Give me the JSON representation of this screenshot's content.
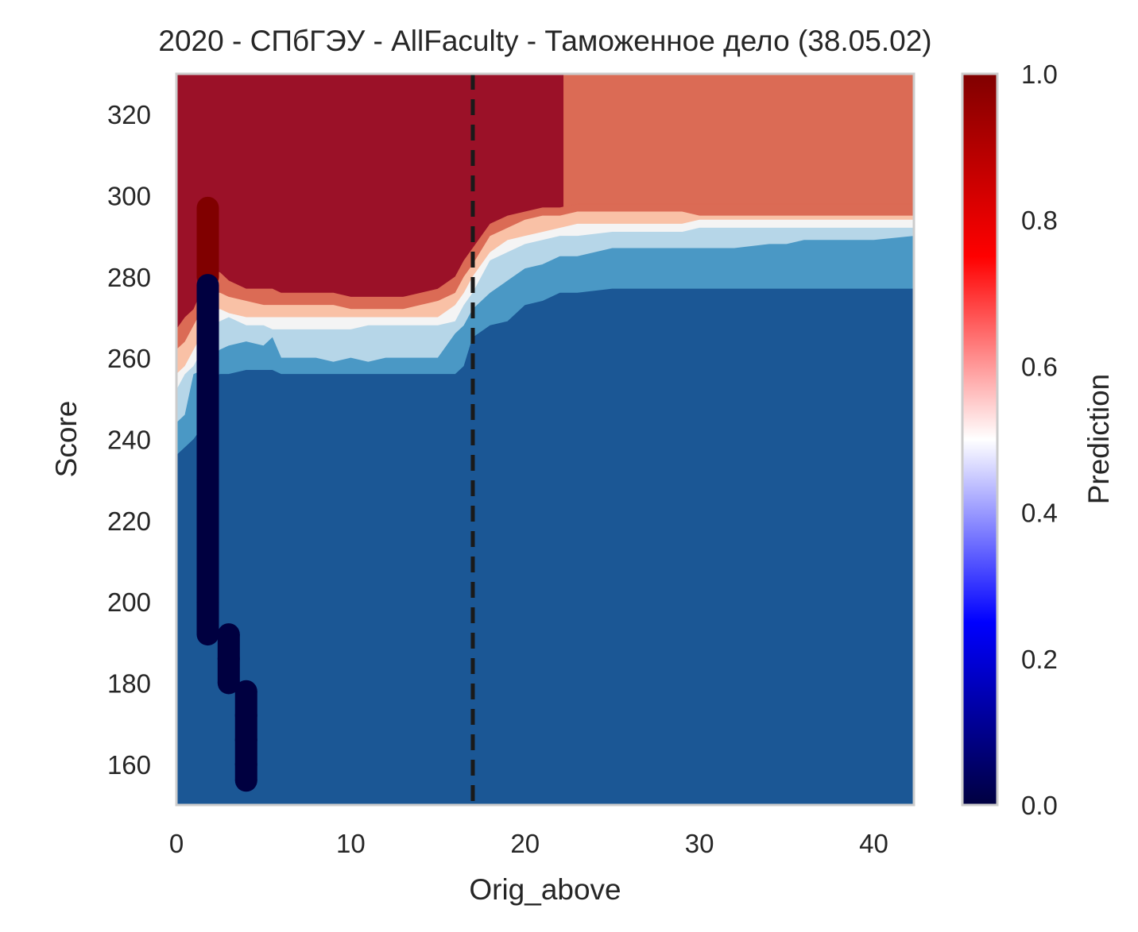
{
  "chart_data": {
    "type": "contour",
    "title": "2020 - СПбГЭУ - AllFaculty - Таможенное дело (38.05.02)",
    "xlabel": "Orig_above",
    "ylabel": "Score",
    "xlim": [
      0,
      42.3
    ],
    "ylim": [
      150,
      330
    ],
    "xticks": [
      "0",
      "10",
      "20",
      "30",
      "40"
    ],
    "yticks": [
      "160",
      "180",
      "200",
      "220",
      "240",
      "260",
      "280",
      "300",
      "320"
    ],
    "grid": false,
    "vline": {
      "x": 17,
      "style": "dashed",
      "color": "#1a1a1a"
    },
    "contour_levels": [
      {
        "label": "<0.2",
        "color": "#1b5795"
      },
      {
        "label": "0.2-0.4",
        "color": "#4a98c5"
      },
      {
        "label": "0.4-0.5",
        "color": "#b6d6e8"
      },
      {
        "label": "0.5-0.6",
        "color": "#f4f4f4"
      },
      {
        "label": "0.6-0.8",
        "color": "#f9c1a6"
      },
      {
        "label": "0.8-0.9",
        "color": "#db6b55"
      },
      {
        "label": ">0.9",
        "color": "#9b1128"
      }
    ],
    "contour_boundaries": {
      "x": [
        0,
        0.5,
        1.0,
        1.5,
        2.0,
        2.5,
        3.0,
        4.0,
        5.0,
        5.5,
        6.0,
        7.0,
        8.0,
        9.0,
        10.0,
        11.0,
        12.0,
        13.0,
        14.0,
        15.0,
        16.0,
        16.5,
        17.0,
        18.0,
        19.0,
        20.0,
        21.0,
        22.0,
        23.0,
        25.0,
        26.0,
        27.0,
        28.0,
        29.0,
        30.0,
        32.0,
        34.0,
        35.0,
        36.0,
        38.0,
        40.0,
        42.3
      ],
      "b1": [
        236,
        238,
        240,
        243,
        255,
        256,
        256,
        257,
        257,
        257,
        256,
        256,
        256,
        256,
        256,
        256,
        256,
        256,
        256,
        256,
        256,
        258,
        265,
        268,
        269,
        273,
        274,
        276,
        276,
        277,
        277,
        277,
        277,
        277,
        277,
        277,
        277,
        277,
        277,
        277,
        277,
        277
      ],
      "b2": [
        244,
        246,
        256,
        257,
        260,
        262,
        263,
        264,
        263,
        265,
        260,
        260,
        260,
        259,
        260,
        259,
        260,
        260,
        260,
        260,
        266,
        268,
        272,
        276,
        279,
        282,
        283,
        285,
        285,
        287,
        287,
        287,
        287,
        287,
        287,
        287,
        288,
        288,
        289,
        289,
        289,
        290
      ],
      "b3": [
        252,
        256,
        258,
        262,
        268,
        269,
        270,
        268,
        268,
        267,
        267,
        267,
        267,
        267,
        267,
        268,
        268,
        268,
        268,
        268,
        269,
        273,
        276,
        284,
        286,
        288,
        289,
        290,
        290,
        291,
        291,
        291,
        291,
        291,
        292,
        292,
        292,
        292,
        292,
        292,
        292,
        292
      ],
      "b4": [
        256,
        258,
        262,
        266,
        271,
        272,
        271,
        270,
        270,
        270,
        270,
        270,
        270,
        270,
        270,
        270,
        270,
        270,
        270,
        270,
        273,
        276,
        280,
        286,
        289,
        290,
        291,
        292,
        293,
        293,
        293,
        293,
        293,
        293,
        294,
        294,
        294,
        294,
        294,
        294,
        294,
        294
      ],
      "b5": [
        262,
        264,
        268,
        272,
        276,
        276,
        275,
        274,
        273,
        273,
        273,
        273,
        273,
        273,
        272,
        272,
        272,
        272,
        273,
        274,
        276,
        280,
        283,
        290,
        292,
        294,
        295,
        295,
        296,
        296,
        296,
        296,
        296,
        296,
        295,
        295,
        295,
        295,
        295,
        295,
        295,
        295
      ],
      "b6": [
        267,
        270,
        272,
        277,
        282,
        281,
        279,
        277,
        277,
        277,
        276,
        276,
        276,
        276,
        275,
        275,
        275,
        275,
        276,
        277,
        280,
        284,
        287,
        293,
        295,
        296,
        297,
        297,
        298,
        298,
        298,
        298,
        298,
        298,
        298,
        298,
        298,
        298,
        298,
        298,
        298,
        298
      ],
      "b7_x_end": 22.2
    },
    "scatter_points": [
      {
        "x": 1.8,
        "y": 297,
        "pred": 1
      },
      {
        "x": 1.8,
        "y": 290,
        "pred": 1
      },
      {
        "x": 1.8,
        "y": 288,
        "pred": 1
      },
      {
        "x": 1.8,
        "y": 285,
        "pred": 1
      },
      {
        "x": 1.8,
        "y": 282,
        "pred": 1
      },
      {
        "x": 1.8,
        "y": 280,
        "pred": 1
      },
      {
        "x": 1.8,
        "y": 278,
        "pred": 0
      },
      {
        "x": 1.8,
        "y": 270,
        "pred": 0
      },
      {
        "x": 1.8,
        "y": 260,
        "pred": 0
      },
      {
        "x": 1.8,
        "y": 250,
        "pred": 0
      },
      {
        "x": 1.8,
        "y": 240,
        "pred": 0
      },
      {
        "x": 1.8,
        "y": 230,
        "pred": 0
      },
      {
        "x": 1.8,
        "y": 220,
        "pred": 0
      },
      {
        "x": 1.8,
        "y": 210,
        "pred": 0
      },
      {
        "x": 1.8,
        "y": 200,
        "pred": 0
      },
      {
        "x": 1.8,
        "y": 192,
        "pred": 0
      },
      {
        "x": 3.0,
        "y": 192,
        "pred": 0
      },
      {
        "x": 3.0,
        "y": 186,
        "pred": 0
      },
      {
        "x": 3.0,
        "y": 180,
        "pred": 0
      },
      {
        "x": 4.0,
        "y": 178,
        "pred": 0
      },
      {
        "x": 4.0,
        "y": 172,
        "pred": 0
      },
      {
        "x": 4.0,
        "y": 166,
        "pred": 0
      },
      {
        "x": 4.0,
        "y": 160,
        "pred": 0
      },
      {
        "x": 4.0,
        "y": 156,
        "pred": 0
      }
    ],
    "colorbar": {
      "label": "Prediction",
      "ticks": [
        "0.0",
        "0.2",
        "0.4",
        "0.6",
        "0.8",
        "1.0"
      ],
      "colormap": [
        "#000040",
        "#0000ff",
        "#ffffff",
        "#ff0000",
        "#800000"
      ]
    }
  }
}
